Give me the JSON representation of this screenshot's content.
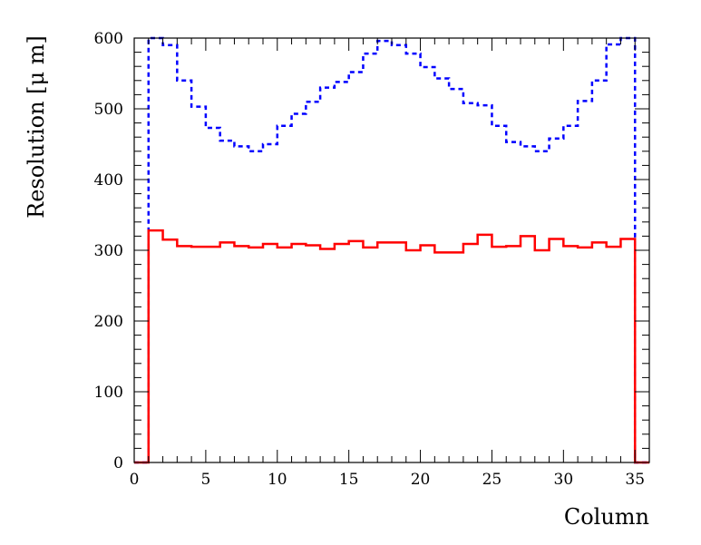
{
  "chart_data": {
    "type": "line",
    "step": true,
    "xlabel": "Column",
    "ylabel": "Resolution [μ m]",
    "xlim": [
      0,
      36
    ],
    "ylim": [
      0,
      600
    ],
    "x_ticks": [
      0,
      5,
      10,
      15,
      20,
      25,
      30,
      35
    ],
    "y_ticks": [
      0,
      100,
      200,
      300,
      400,
      500,
      600
    ],
    "grid": false,
    "legend": "none",
    "bin_edges": [
      0,
      1,
      2,
      3,
      4,
      5,
      6,
      7,
      8,
      9,
      10,
      11,
      12,
      13,
      14,
      15,
      16,
      17,
      18,
      19,
      20,
      21,
      22,
      23,
      24,
      25,
      26,
      27,
      28,
      29,
      30,
      31,
      32,
      33,
      34,
      35,
      36
    ],
    "series": [
      {
        "color": "#0000ff",
        "style": "dotted",
        "values": [
          0,
          600,
          590,
          540,
          503,
          473,
          455,
          447,
          440,
          450,
          476,
          493,
          510,
          530,
          538,
          552,
          578,
          596,
          590,
          578,
          559,
          543,
          528,
          508,
          505,
          476,
          453,
          447,
          440,
          458,
          476,
          511,
          540,
          591,
          600,
          0
        ]
      },
      {
        "color": "#ff0000",
        "style": "solid",
        "values": [
          0,
          328,
          315,
          306,
          305,
          305,
          311,
          306,
          304,
          309,
          304,
          309,
          307,
          302,
          309,
          313,
          304,
          311,
          311,
          300,
          307,
          297,
          297,
          309,
          322,
          305,
          306,
          320,
          300,
          316,
          306,
          304,
          311,
          305,
          316,
          0
        ]
      }
    ]
  }
}
